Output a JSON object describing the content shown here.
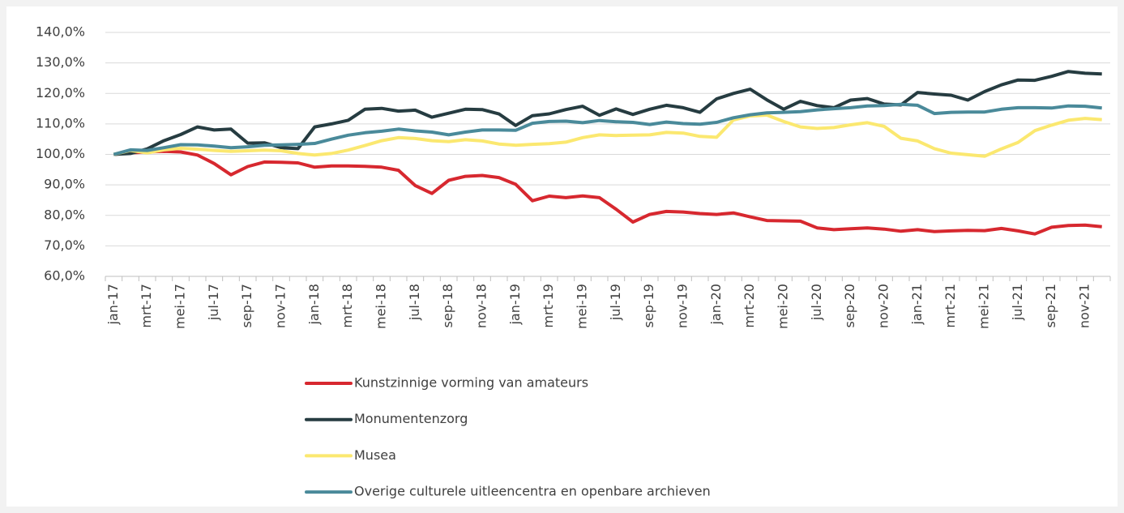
{
  "chart_data": {
    "type": "line",
    "categories": [
      "jan-17",
      null,
      "mrt-17",
      null,
      "mei-17",
      null,
      "jul-17",
      null,
      "sep-17",
      null,
      "nov-17",
      null,
      "jan-18",
      null,
      "mrt-18",
      null,
      "mei-18",
      null,
      "jul-18",
      null,
      "sep-18",
      null,
      "nov-18",
      null,
      "jan-19",
      null,
      "mrt-19",
      null,
      "mei-19",
      null,
      "jul-19",
      null,
      "sep-19",
      null,
      "nov-19",
      null,
      "jan-20",
      null,
      "mrt-20",
      null,
      "mei-20",
      null,
      "jul-20",
      null,
      "sep-20",
      null,
      "nov-20",
      null,
      "jan-21",
      null,
      "mrt-21",
      null,
      "mei-21",
      null,
      "jul-21",
      null,
      "sep-21",
      null,
      "nov-21",
      null
    ],
    "series": [
      {
        "name": "Kunstzinnige vorming van amateurs",
        "color": "#d7282f",
        "values": [
          100,
          100.5,
          100.8,
          101,
          100.8,
          99.8,
          97,
          93.3,
          96,
          97.5,
          97.4,
          97.2,
          95.8,
          96.2,
          96.2,
          96.1,
          95.8,
          94.8,
          89.8,
          87.2,
          91.5,
          92.8,
          93.1,
          92.4,
          90.2,
          84.8,
          86.3,
          85.8,
          86.4,
          85.8,
          82,
          77.8,
          80.3,
          81.3,
          81.1,
          80.6,
          80.3,
          80.8,
          79.5,
          78.3,
          78.2,
          78.1,
          75.9,
          75.3,
          75.6,
          75.9,
          75.5,
          74.8,
          75.3,
          74.7,
          74.9,
          75.1,
          75,
          75.7,
          74.9,
          73.9,
          76.1,
          76.7,
          76.8,
          76.3
        ]
      },
      {
        "name": "Monumentenzorg",
        "color": "#263c41",
        "values": [
          100,
          100.3,
          101.8,
          104.5,
          106.5,
          109,
          108,
          108.3,
          103.7,
          103.8,
          102.2,
          101.9,
          109,
          110,
          111.2,
          114.8,
          115.1,
          114.2,
          114.5,
          112.2,
          113.5,
          114.8,
          114.7,
          113.3,
          109.5,
          112.7,
          113.3,
          114.7,
          115.8,
          112.8,
          114.9,
          113.1,
          114.8,
          116.1,
          115.3,
          113.8,
          118.2,
          120,
          121.4,
          117.9,
          114.8,
          117.4,
          116,
          115.3,
          117.8,
          118.3,
          116.5,
          116.2,
          120.3,
          119.8,
          119.4,
          117.8,
          120.6,
          122.8,
          124.4,
          124.3,
          125.6,
          127.2,
          126.6,
          126.4
        ]
      },
      {
        "name": "Musea",
        "color": "#fbe870",
        "values": [
          100,
          101.3,
          100.5,
          101.5,
          102,
          101.7,
          101.3,
          101,
          101.2,
          101.4,
          101.2,
          100.3,
          99.8,
          100.3,
          101.4,
          102.9,
          104.5,
          105.5,
          105.2,
          104.5,
          104.2,
          104.8,
          104.4,
          103.4,
          103,
          103.3,
          103.5,
          104,
          105.5,
          106.4,
          106.2,
          106.3,
          106.4,
          107.2,
          107,
          105.9,
          105.6,
          111.3,
          112.6,
          112.9,
          110.8,
          109,
          108.5,
          108.8,
          109.7,
          110.4,
          109.2,
          105.3,
          104.4,
          101.9,
          100.4,
          99.9,
          99.4,
          101.8,
          103.9,
          107.8,
          109.6,
          111.2,
          111.8,
          111.4
        ]
      },
      {
        "name": "Overige culturele uitleencentra en openbare archieven",
        "color": "#4a8a9a",
        "values": [
          100,
          101.5,
          101.3,
          102.2,
          103.2,
          103.1,
          102.7,
          102.2,
          102.5,
          103,
          103.1,
          103.3,
          103.6,
          105,
          106.3,
          107.1,
          107.6,
          108.3,
          107.7,
          107.3,
          106.4,
          107.3,
          108,
          108,
          107.9,
          110.2,
          110.8,
          110.9,
          110.4,
          111.1,
          110.7,
          110.5,
          109.8,
          110.6,
          110.1,
          109.9,
          110.5,
          112,
          113,
          113.6,
          113.8,
          114,
          114.6,
          115,
          115.3,
          115.9,
          116,
          116.4,
          116.1,
          113.4,
          113.8,
          113.9,
          113.9,
          114.8,
          115.3,
          115.3,
          115.2,
          115.9,
          115.8,
          115.2
        ]
      }
    ],
    "ylim": [
      60,
      140
    ],
    "yticks": [
      {
        "value": 60,
        "label": "60,0%"
      },
      {
        "value": 70,
        "label": "70,0%"
      },
      {
        "value": 80,
        "label": "80,0%"
      },
      {
        "value": 90,
        "label": "90,0%"
      },
      {
        "value": 100,
        "label": "100,0%"
      },
      {
        "value": 110,
        "label": "110,0%"
      },
      {
        "value": 120,
        "label": "120,0%"
      },
      {
        "value": 130,
        "label": "130,0%"
      },
      {
        "value": 140,
        "label": "140,0%"
      }
    ],
    "grid": true,
    "legend": "bottom"
  }
}
